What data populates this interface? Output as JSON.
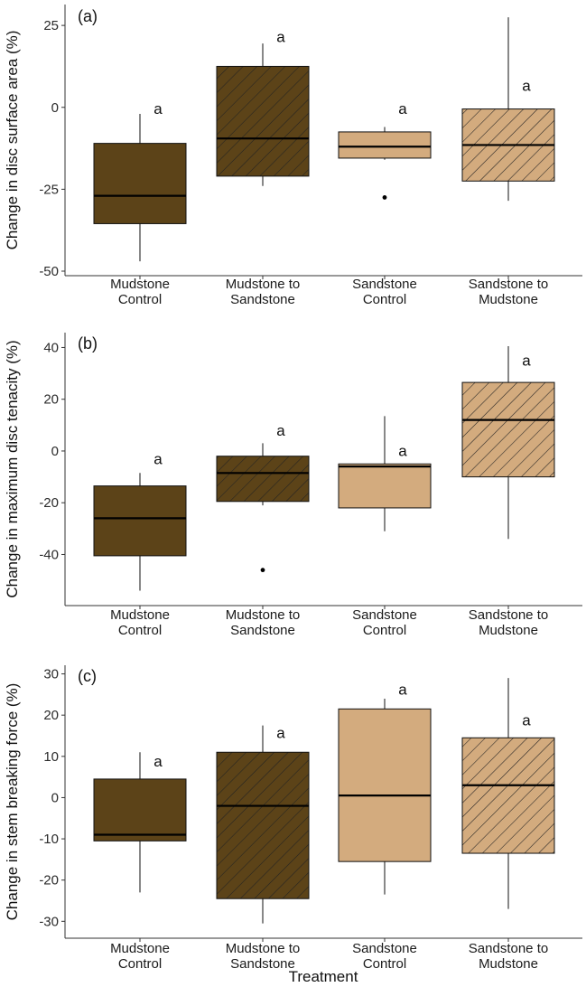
{
  "colors": {
    "mudstone": "#5c4318",
    "sandstone": "#d3ab7e",
    "hatch": "#222222",
    "axis": "#333333",
    "text": "#111111"
  },
  "x_axis_title": "Treatment",
  "chart_data": [
    {
      "type": "boxplot",
      "panel_label": "(a)",
      "ylabel": "Change in disc surface area (%)",
      "ylim": [
        -50,
        30
      ],
      "yticks": [
        25,
        0,
        -25,
        -50
      ],
      "ytick_labels": [
        "25",
        "0",
        "-25",
        "-50"
      ],
      "categories": [
        {
          "line1": "Mudstone",
          "line2": "Control"
        },
        {
          "line1": "Mudstone to",
          "line2": "Sandstone"
        },
        {
          "line1": "Sandstone",
          "line2": "Control"
        },
        {
          "line1": "Sandstone to",
          "line2": "Mudstone"
        }
      ],
      "boxes": [
        {
          "fill": "mudstone",
          "hatched": false,
          "whisker_low": -47,
          "q1": -35.5,
          "median": -27,
          "q3": -11,
          "whisker_high": -2,
          "outliers": [],
          "label": "a",
          "label_y": -2
        },
        {
          "fill": "mudstone",
          "hatched": true,
          "whisker_low": -24,
          "q1": -21,
          "median": -9.5,
          "q3": 12.5,
          "whisker_high": 19.5,
          "outliers": [],
          "label": "a",
          "label_y": 20
        },
        {
          "fill": "sandstone",
          "hatched": false,
          "whisker_low": -16,
          "q1": -15.5,
          "median": -12,
          "q3": -7.5,
          "whisker_high": -6,
          "outliers": [
            -27.5
          ],
          "label": "a",
          "label_y": -2
        },
        {
          "fill": "sandstone",
          "hatched": true,
          "whisker_low": -28.5,
          "q1": -22.5,
          "median": -11.5,
          "q3": -0.5,
          "whisker_high": 27.5,
          "outliers": [],
          "label": "a",
          "label_y": 5
        }
      ]
    },
    {
      "type": "boxplot",
      "panel_label": "(b)",
      "ylabel": "Change in maximum disc tenacity (%)",
      "ylim": [
        -58,
        44
      ],
      "yticks": [
        40,
        20,
        0,
        -20,
        -40
      ],
      "ytick_labels": [
        "40",
        "20",
        "0",
        "-20",
        "-40"
      ],
      "categories": [
        {
          "line1": "Mudstone",
          "line2": "Control"
        },
        {
          "line1": "Mudstone to",
          "line2": "Sandstone"
        },
        {
          "line1": "Sandstone",
          "line2": "Control"
        },
        {
          "line1": "Sandstone to",
          "line2": "Mudstone"
        }
      ],
      "boxes": [
        {
          "fill": "mudstone",
          "hatched": false,
          "whisker_low": -54,
          "q1": -40.5,
          "median": -26,
          "q3": -13.5,
          "whisker_high": -8.5,
          "outliers": [],
          "label": "a",
          "label_y": -5
        },
        {
          "fill": "mudstone",
          "hatched": true,
          "whisker_low": -21,
          "q1": -19.5,
          "median": -8.5,
          "q3": -2,
          "whisker_high": 3,
          "outliers": [
            -46
          ],
          "label": "a",
          "label_y": 6
        },
        {
          "fill": "sandstone",
          "hatched": false,
          "whisker_low": -31,
          "q1": -22,
          "median": -6,
          "q3": -5,
          "whisker_high": 13.5,
          "outliers": [],
          "label": "a",
          "label_y": -2
        },
        {
          "fill": "sandstone",
          "hatched": true,
          "whisker_low": -34,
          "q1": -10,
          "median": 12,
          "q3": 26.5,
          "whisker_high": 40.5,
          "outliers": [],
          "label": "a",
          "label_y": 33
        }
      ]
    },
    {
      "type": "boxplot",
      "panel_label": "(c)",
      "ylabel": "Change in stem breaking force (%)",
      "ylim": [
        -33,
        31
      ],
      "yticks": [
        30,
        20,
        10,
        0,
        -10,
        -20,
        -30
      ],
      "ytick_labels": [
        "30",
        "20",
        "10",
        "0",
        "-10",
        "-20",
        "-30"
      ],
      "categories": [
        {
          "line1": "Mudstone",
          "line2": "Control"
        },
        {
          "line1": "Mudstone to",
          "line2": "Sandstone"
        },
        {
          "line1": "Sandstone",
          "line2": "Control"
        },
        {
          "line1": "Sandstone to",
          "line2": "Mudstone"
        }
      ],
      "boxes": [
        {
          "fill": "mudstone",
          "hatched": false,
          "whisker_low": -23,
          "q1": -10.5,
          "median": -9,
          "q3": 4.5,
          "whisker_high": 11,
          "outliers": [],
          "label": "a",
          "label_y": 7.5
        },
        {
          "fill": "mudstone",
          "hatched": true,
          "whisker_low": -30.5,
          "q1": -24.5,
          "median": -2,
          "q3": 11,
          "whisker_high": 17.5,
          "outliers": [],
          "label": "a",
          "label_y": 14.5
        },
        {
          "fill": "sandstone",
          "hatched": false,
          "whisker_low": -23.5,
          "q1": -15.5,
          "median": 0.5,
          "q3": 21.5,
          "whisker_high": 24,
          "outliers": [],
          "label": "a",
          "label_y": 25
        },
        {
          "fill": "sandstone",
          "hatched": true,
          "whisker_low": -27,
          "q1": -13.5,
          "median": 3,
          "q3": 14.5,
          "whisker_high": 29,
          "outliers": [],
          "label": "a",
          "label_y": 17.5
        }
      ]
    }
  ]
}
